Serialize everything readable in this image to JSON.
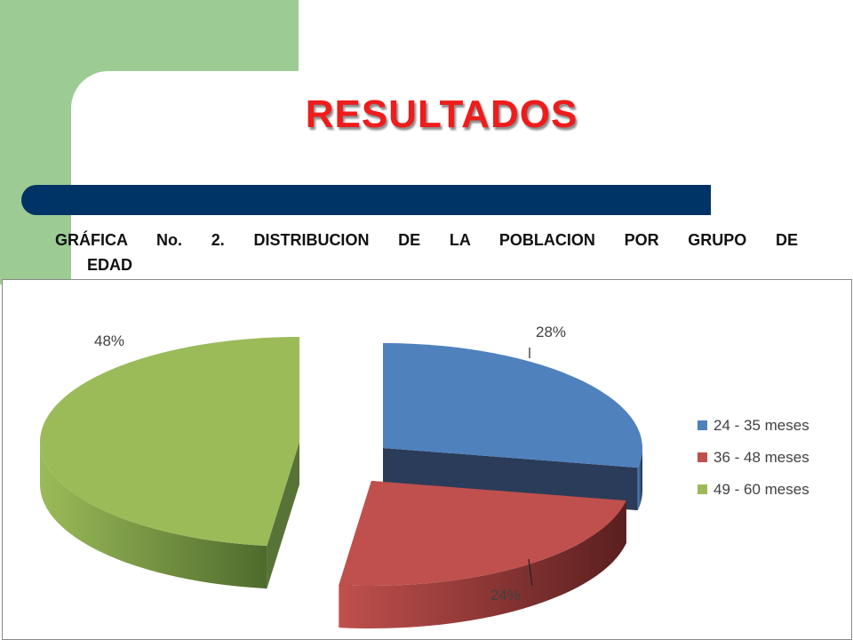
{
  "slide": {
    "title": "RESULTADOS",
    "caption_line1": "GRÁFICA No. 2. DISTRIBUCION DE LA POBLACION POR GRUPO DE",
    "caption_line2": "EDAD"
  },
  "colors": {
    "green_block": "#9ccc94",
    "title_red": "#ee1c1c",
    "bar_navy": "#003366"
  },
  "chart_data": {
    "type": "pie",
    "style": "3d-exploded",
    "legend_position": "right",
    "categories": [
      "24 - 35 meses",
      "36 - 48 meses",
      "49 - 60 meses"
    ],
    "values": [
      28,
      24,
      48
    ],
    "data_labels": [
      "28%",
      "24%",
      "48%"
    ],
    "colors": [
      "#4f81bd",
      "#c0504d",
      "#9bbb59"
    ],
    "dark_colors": [
      "#1f3150",
      "#5a1f1f",
      "#4f6b2c"
    ]
  }
}
